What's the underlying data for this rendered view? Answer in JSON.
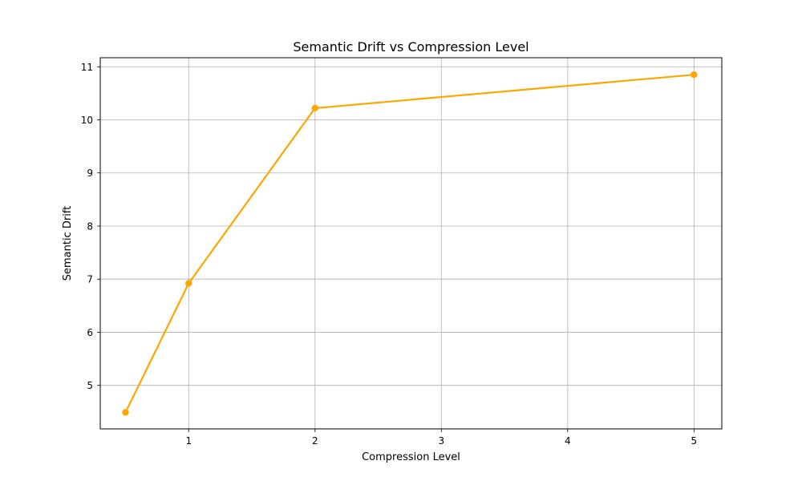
{
  "chart_data": {
    "type": "line",
    "title": "Semantic Drift vs Compression Level",
    "xlabel": "Compression Level",
    "ylabel": "Semantic Drift",
    "xlim": [
      0.3,
      5.22
    ],
    "ylim": [
      4.18,
      11.17
    ],
    "xticks": [
      1,
      2,
      3,
      4,
      5
    ],
    "yticks": [
      5,
      6,
      7,
      8,
      9,
      10,
      11
    ],
    "grid": true,
    "legend": "none",
    "series": [
      {
        "color": "#ffa500",
        "marker": "circle",
        "points": [
          {
            "x": 0.5,
            "y": 4.49
          },
          {
            "x": 1,
            "y": 6.92
          },
          {
            "x": 2,
            "y": 10.22
          },
          {
            "x": 5,
            "y": 10.85
          }
        ]
      }
    ]
  }
}
